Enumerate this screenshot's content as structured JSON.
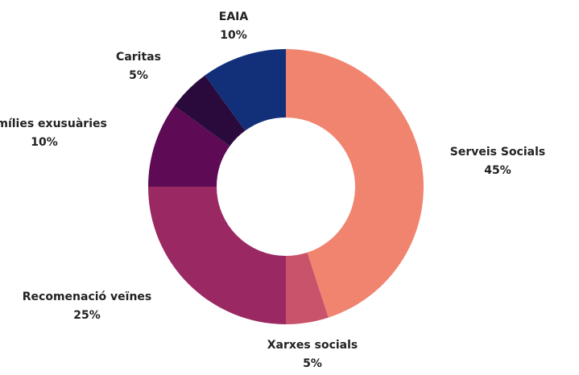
{
  "chart_data": {
    "type": "donut",
    "categories": [
      "Serveis Socials",
      "Xarxes socials",
      "Recomenació veïnes",
      "Famílies exusuàries",
      "Caritas",
      "EAIA"
    ],
    "values": [
      45,
      5,
      25,
      10,
      5,
      10
    ],
    "value_labels": [
      "45%",
      "5%",
      "25%",
      "10%",
      "5%",
      "10%"
    ],
    "colors": [
      "#f0846f",
      "#c9536a",
      "#9a2862",
      "#5e0a55",
      "#2a0a3d",
      "#12307a"
    ]
  }
}
